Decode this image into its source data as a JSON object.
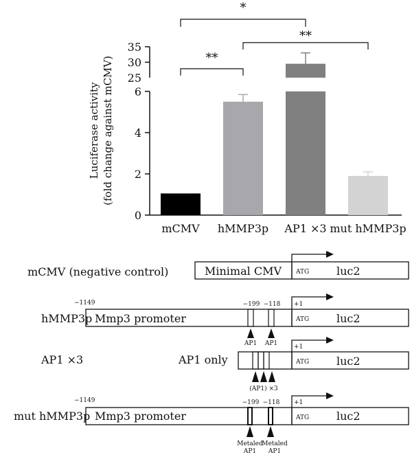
{
  "chart_data": {
    "type": "bar",
    "ylabel_line1": "Luciferase activity",
    "ylabel_line2": "(fold change against mCMV)",
    "categories": [
      "mCMV",
      "hMMP3p",
      "AP1 ×3",
      "mut hMMP3p"
    ],
    "values": [
      1.05,
      5.5,
      29.5,
      1.9
    ],
    "errors": [
      0,
      0.35,
      3.5,
      0.2
    ],
    "colors": [
      "#000000",
      "#a7a7ac",
      "#808080",
      "#d3d3d3"
    ],
    "axis_break": true,
    "lower_ticks": [
      "0",
      "2",
      "4",
      "6"
    ],
    "upper_ticks": [
      "25",
      "30",
      "35"
    ],
    "ylim_lower": [
      0,
      6
    ],
    "ylim_upper": [
      25,
      35
    ],
    "significance": [
      {
        "from": 0,
        "to": 2,
        "label": "*"
      },
      {
        "from": 1,
        "to": 3,
        "label": "**"
      },
      {
        "from": 0,
        "to": 1,
        "label": "**"
      }
    ]
  },
  "diagram": {
    "rows": [
      {
        "name": "mCMV (negative control)",
        "block_label": "Minimal CMV",
        "atg": "ATG",
        "gene": "luc2",
        "plus_one": ""
      },
      {
        "name": "hMMP3p",
        "start_pos": "−1149",
        "block_label": "Mmp3 promoter",
        "pos1": "−199",
        "pos2": "−118",
        "plus_one": "+1",
        "atg": "ATG",
        "gene": "luc2",
        "site_label": "AP1"
      },
      {
        "name": "AP1 ×3",
        "block_label": "AP1 only",
        "plus_one": "+1",
        "atg": "ATG",
        "gene": "luc2",
        "site_label": "(AP1) ×3"
      },
      {
        "name": "mut hMMP3p",
        "start_pos": "−1149",
        "block_label": "Mmp3 promoter",
        "pos1": "−199",
        "pos2": "−118",
        "plus_one": "+1",
        "atg": "ATG",
        "gene": "luc2",
        "site_label_line1": "Metaled",
        "site_label_line2": "AP1"
      }
    ]
  }
}
